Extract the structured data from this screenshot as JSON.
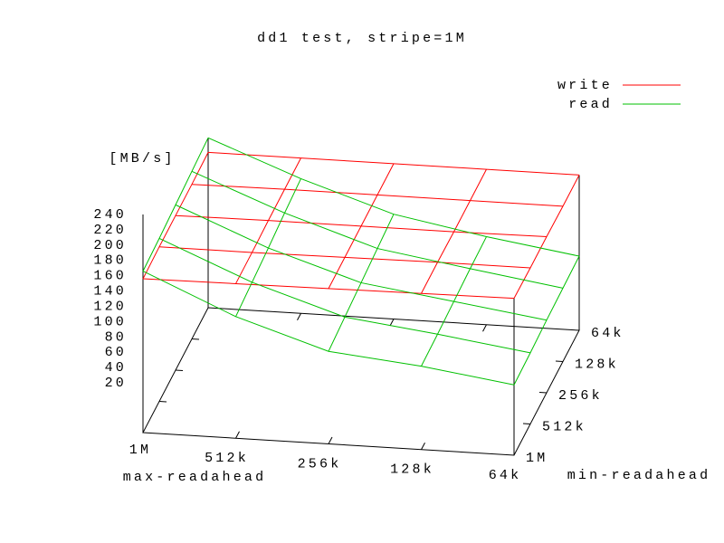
{
  "chart_data": {
    "type": "surface",
    "title": "dd1 test, stripe=1M",
    "x_label": "max-readahead",
    "y_label": "min-readahead",
    "z_label": "[MB/s]",
    "x_categories": [
      "1M",
      "512k",
      "256k",
      "128k",
      "64k"
    ],
    "y_categories": [
      "1M",
      "512k",
      "256k",
      "128k",
      "64k"
    ],
    "zlim": [
      0,
      240
    ],
    "zticks": [
      20,
      40,
      60,
      80,
      100,
      120,
      140,
      160,
      180,
      200,
      220,
      240
    ],
    "legend": "upper right",
    "series": [
      {
        "name": "write",
        "color": "#ff0000",
        "values": [
          [
            156,
            157,
            158,
            159,
            160
          ],
          [
            157,
            157,
            158,
            159,
            159
          ],
          [
            157,
            158,
            158,
            158,
            159
          ],
          [
            157,
            158,
            158,
            158,
            158
          ],
          [
            158,
            158,
            158,
            158,
            158
          ]
        ]
      },
      {
        "name": "read",
        "color": "#00c000",
        "values": [
          [
            166,
            114,
            76,
            64,
            47
          ],
          [
            168,
            118,
            80,
            65,
            48
          ],
          [
            171,
            122,
            84,
            67,
            50
          ],
          [
            174,
            127,
            88,
            69,
            51
          ],
          [
            177,
            131,
            92,
            70,
            52
          ]
        ]
      }
    ]
  }
}
